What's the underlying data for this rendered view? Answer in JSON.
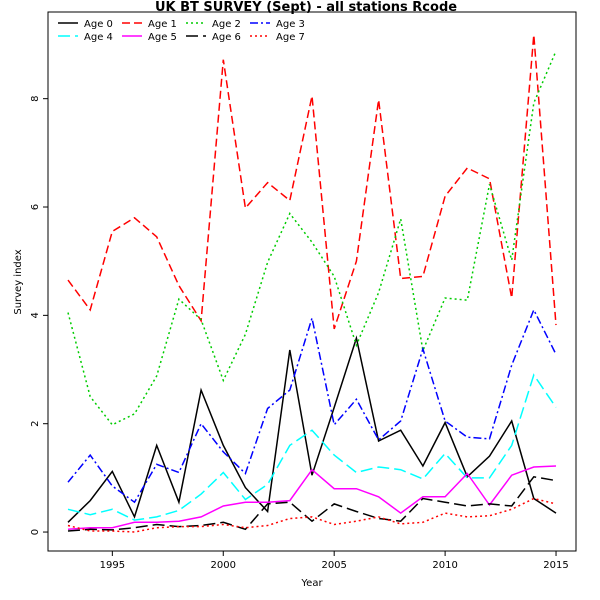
{
  "chart_data": {
    "type": "line",
    "title": "UK BT SURVEY (Sept) - all stations Rcode",
    "xlabel": "Year",
    "ylabel": "Survey index",
    "xlim": [
      1992.1,
      2015.9
    ],
    "ylim": [
      -0.35,
      9.6
    ],
    "xticks": [
      1995,
      2000,
      2005,
      2010,
      2015
    ],
    "yticks": [
      0,
      2,
      4,
      6,
      8
    ],
    "grid": false,
    "legend_position": "top-left",
    "x": [
      1993,
      1994,
      1995,
      1996,
      1997,
      1998,
      1999,
      2000,
      2001,
      2002,
      2003,
      2004,
      2005,
      2006,
      2007,
      2008,
      2009,
      2010,
      2011,
      2012,
      2013,
      2014,
      2015
    ],
    "series": [
      {
        "name": "Age 0",
        "color": "#000000",
        "dash": "solid",
        "values": [
          0.18,
          0.58,
          1.12,
          0.28,
          1.6,
          0.55,
          2.62,
          1.6,
          0.82,
          0.38,
          3.36,
          1.05,
          2.3,
          3.58,
          1.68,
          1.88,
          1.22,
          2.02,
          1.02,
          1.4,
          2.05,
          0.62,
          0.35
        ]
      },
      {
        "name": "Age 1",
        "color": "#ff0000",
        "dash": "dashed",
        "values": [
          4.65,
          4.1,
          5.55,
          5.8,
          5.45,
          4.55,
          3.9,
          8.72,
          5.98,
          6.45,
          6.12,
          8.05,
          3.75,
          5.0,
          7.98,
          4.68,
          4.72,
          6.2,
          6.72,
          6.52,
          4.32,
          9.18,
          3.82
        ]
      },
      {
        "name": "Age 2",
        "color": "#00cc00",
        "dash": "dotted",
        "values": [
          4.05,
          2.5,
          1.98,
          2.18,
          2.88,
          4.3,
          3.92,
          2.8,
          3.65,
          4.98,
          5.88,
          5.35,
          4.72,
          3.45,
          4.42,
          5.78,
          3.35,
          4.32,
          4.28,
          6.42,
          5.02,
          7.92,
          8.88
        ]
      },
      {
        "name": "Age 3",
        "color": "#0000ff",
        "dash": "dashdot",
        "values": [
          0.92,
          1.42,
          0.85,
          0.55,
          1.25,
          1.1,
          2.0,
          1.48,
          1.08,
          2.28,
          2.62,
          3.95,
          1.98,
          2.45,
          1.7,
          2.05,
          3.38,
          2.05,
          1.75,
          1.72,
          3.08,
          4.1,
          3.28
        ]
      },
      {
        "name": "Age 4",
        "color": "#00ffff",
        "dash": "longdash",
        "values": [
          0.42,
          0.32,
          0.42,
          0.22,
          0.28,
          0.4,
          0.7,
          1.1,
          0.6,
          0.88,
          1.6,
          1.88,
          1.42,
          1.1,
          1.2,
          1.15,
          0.98,
          1.45,
          1.0,
          1.0,
          1.6,
          2.9,
          2.3
        ]
      },
      {
        "name": "Age 5",
        "color": "#ff00ff",
        "dash": "solid",
        "values": [
          0.05,
          0.08,
          0.08,
          0.18,
          0.18,
          0.2,
          0.28,
          0.48,
          0.55,
          0.55,
          0.58,
          1.15,
          0.8,
          0.8,
          0.65,
          0.35,
          0.65,
          0.65,
          1.08,
          0.5,
          1.05,
          1.2,
          1.22
        ]
      },
      {
        "name": "Age 6",
        "color": "#000000",
        "dash": "longdash",
        "values": [
          0.02,
          0.05,
          0.04,
          0.08,
          0.14,
          0.1,
          0.12,
          0.18,
          0.05,
          0.52,
          0.55,
          0.2,
          0.52,
          0.38,
          0.25,
          0.2,
          0.62,
          0.55,
          0.48,
          0.52,
          0.48,
          1.02,
          0.95
        ]
      },
      {
        "name": "Age 7",
        "color": "#ff0000",
        "dash": "dotted",
        "values": [
          0.12,
          0.02,
          0.02,
          0.0,
          0.08,
          0.1,
          0.1,
          0.14,
          0.08,
          0.12,
          0.25,
          0.28,
          0.14,
          0.2,
          0.28,
          0.15,
          0.18,
          0.35,
          0.28,
          0.3,
          0.42,
          0.62,
          0.52
        ]
      }
    ]
  }
}
